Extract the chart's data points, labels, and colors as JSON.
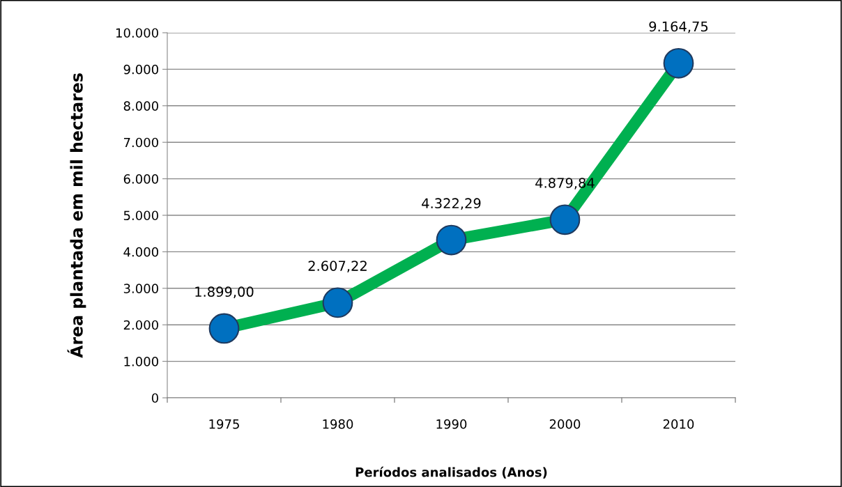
{
  "chart_data": {
    "type": "line",
    "xlabel": "Períodos analisados (Anos)",
    "ylabel": "Área plantada em mil hectares",
    "categories": [
      "1975",
      "1980",
      "1990",
      "2000",
      "2010"
    ],
    "series": [
      {
        "color": "#00b050",
        "colors": [
          "#0070c0",
          "#0070c0",
          "#0070c0",
          "#0070c0",
          "#0070c0"
        ],
        "values": [
          1899.0,
          2607.22,
          4322.29,
          4879.84,
          9164.75
        ],
        "value_labels": [
          "1.899,00",
          "2.607,22",
          "4.322,29",
          "4.879,84",
          "9.164,75"
        ]
      }
    ],
    "ylim": [
      0,
      10000
    ],
    "yticks": [
      {
        "value": 0,
        "label": "0"
      },
      {
        "value": 1000,
        "label": "1.000"
      },
      {
        "value": 2000,
        "label": "2.000"
      },
      {
        "value": 3000,
        "label": "3.000"
      },
      {
        "value": 4000,
        "label": "4.000"
      },
      {
        "value": 5000,
        "label": "5.000"
      },
      {
        "value": 6000,
        "label": "6.000"
      },
      {
        "value": 7000,
        "label": "7.000"
      },
      {
        "value": 8000,
        "label": "8.000"
      },
      {
        "value": 9000,
        "label": "9.000"
      },
      {
        "value": 10000,
        "label": "10.000"
      }
    ],
    "grid": "y",
    "marker": "circle",
    "line_style": "solid",
    "legend": false
  }
}
